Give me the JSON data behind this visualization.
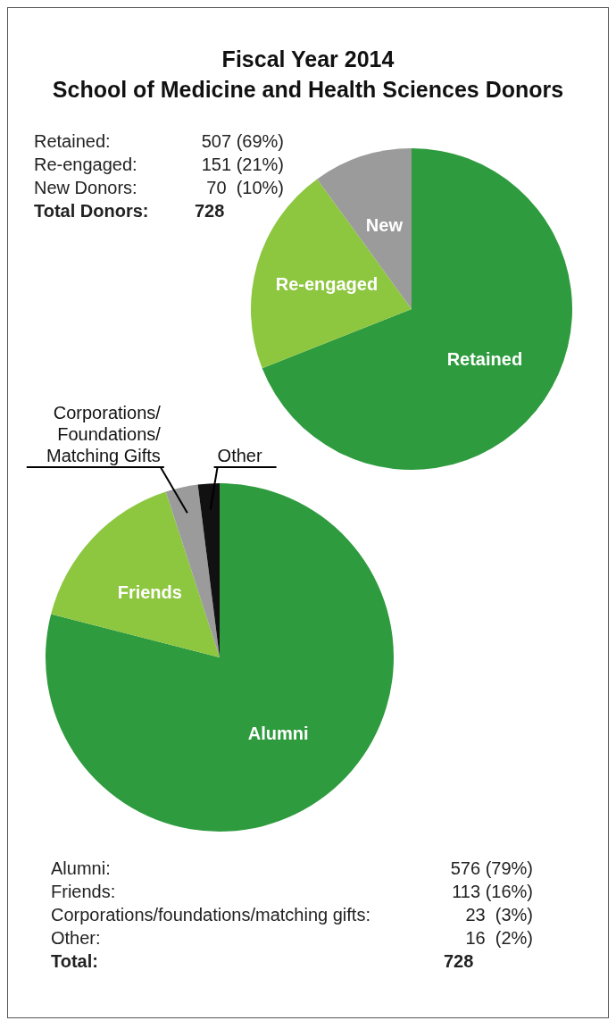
{
  "chart_data": [
    {
      "type": "pie",
      "title": "Fiscal Year 2014",
      "subtitle": "School of Medicine and Health Sciences Donors",
      "categories": [
        "Retained",
        "Re-engaged",
        "New"
      ],
      "values": [
        69,
        21,
        10
      ],
      "colors": [
        "#2e9b3e",
        "#8dc63f",
        "#9b9b9b"
      ],
      "annotations": [
        "Retained:",
        "507 (69%)",
        "Re-engaged:",
        "151 (21%)",
        "New Donors:",
        "70  (10%)",
        "Total Donors:",
        "728"
      ],
      "legend": false
    },
    {
      "type": "pie",
      "categories": [
        "Alumni",
        "Friends",
        "Corporations/\nFoundations/\nMatching Gifts",
        "Other"
      ],
      "values": [
        79,
        16,
        3,
        2
      ],
      "colors": [
        "#2e9b3e",
        "#8dc63f",
        "#9b9b9b",
        "#111111"
      ],
      "annotations": [
        "Alumni:",
        "576 (79%)",
        "Friends:",
        "113 (16%)",
        "Corporations/foundations/matching gifts:",
        "23  (3%)",
        "Other:",
        "16  (2%)",
        "Total:",
        "728"
      ],
      "legend": false
    }
  ]
}
